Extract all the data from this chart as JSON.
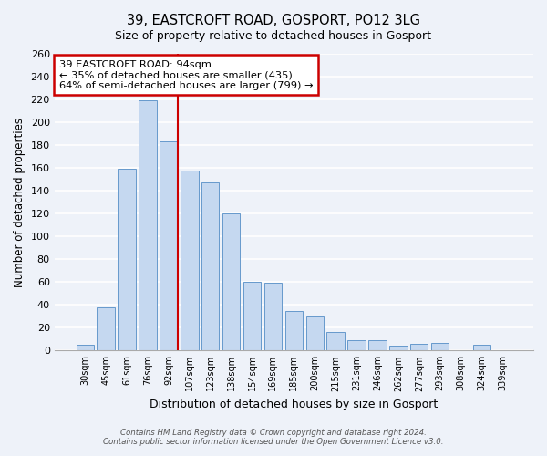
{
  "title": "39, EASTCROFT ROAD, GOSPORT, PO12 3LG",
  "subtitle": "Size of property relative to detached houses in Gosport",
  "xlabel": "Distribution of detached houses by size in Gosport",
  "ylabel": "Number of detached properties",
  "bar_labels": [
    "30sqm",
    "45sqm",
    "61sqm",
    "76sqm",
    "92sqm",
    "107sqm",
    "123sqm",
    "138sqm",
    "154sqm",
    "169sqm",
    "185sqm",
    "200sqm",
    "215sqm",
    "231sqm",
    "246sqm",
    "262sqm",
    "277sqm",
    "293sqm",
    "308sqm",
    "324sqm",
    "339sqm"
  ],
  "bar_values": [
    5,
    38,
    159,
    219,
    183,
    158,
    147,
    120,
    60,
    59,
    35,
    30,
    16,
    9,
    9,
    4,
    6,
    7,
    0,
    5,
    0
  ],
  "bar_color": "#c5d8f0",
  "bar_edge_color": "#6699cc",
  "ylim": [
    0,
    260
  ],
  "yticks": [
    0,
    20,
    40,
    60,
    80,
    100,
    120,
    140,
    160,
    180,
    200,
    220,
    240,
    260
  ],
  "vline_color": "#cc0000",
  "vline_index": 4,
  "annotation_title": "39 EASTCROFT ROAD: 94sqm",
  "annotation_line1": "← 35% of detached houses are smaller (435)",
  "annotation_line2": "64% of semi-detached houses are larger (799) →",
  "annotation_box_color": "#ffffff",
  "annotation_box_edge": "#cc0000",
  "footer1": "Contains HM Land Registry data © Crown copyright and database right 2024.",
  "footer2": "Contains public sector information licensed under the Open Government Licence v3.0.",
  "background_color": "#eef2f9",
  "grid_color": "#ffffff"
}
